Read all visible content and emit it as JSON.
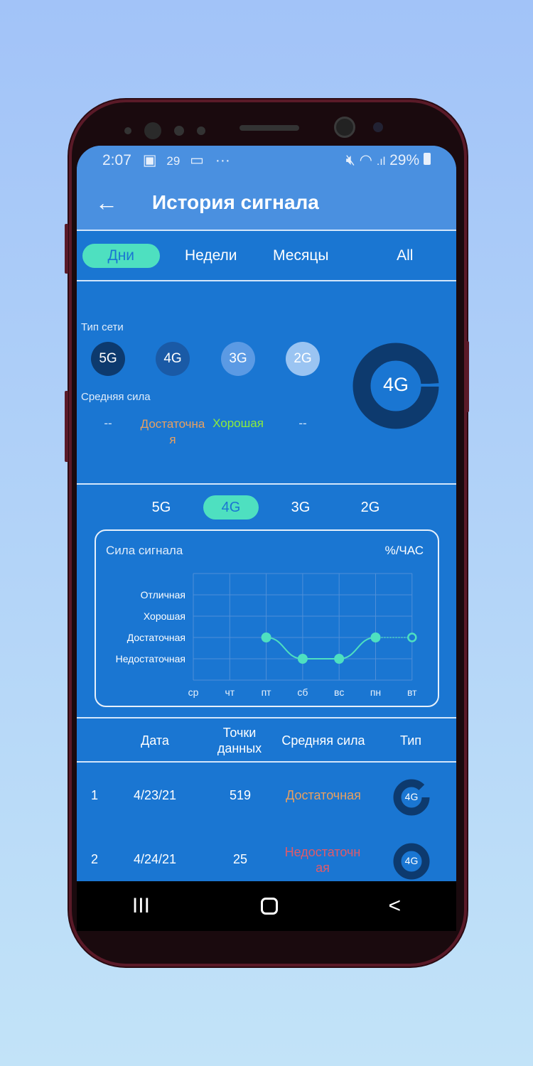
{
  "status_bar": {
    "time": "2:07",
    "date_icon": "29",
    "battery": "29%",
    "icons": [
      "image-icon",
      "calendar-icon",
      "cast-icon",
      "more-icon",
      "mute-icon",
      "wifi-icon",
      "signal-icon",
      "battery-icon"
    ]
  },
  "header": {
    "title": "История сигнала",
    "back_icon": "arrow-left-icon"
  },
  "period_tabs": [
    {
      "label": "Дни",
      "active": true
    },
    {
      "label": "Недели"
    },
    {
      "label": "Месяцы"
    },
    {
      "label": "All"
    }
  ],
  "summary": {
    "network_type_label": "Тип сети",
    "types": [
      {
        "label": "5G",
        "color": "#0d3a6e"
      },
      {
        "label": "4G",
        "color": "#1a5aa6"
      },
      {
        "label": "3G",
        "color": "#5b9ae4"
      },
      {
        "label": "2G",
        "color": "#9ac4f2"
      }
    ],
    "avg_strength_label": "Средняя сила",
    "strengths": [
      {
        "value": "--",
        "color": "#d3e6fb"
      },
      {
        "value": "Достаточная",
        "color": "#e8a060"
      },
      {
        "value": "Хорошая",
        "color": "#8cec3c"
      },
      {
        "value": "--",
        "color": "#d3e6fb"
      }
    ],
    "donut_label": "4G"
  },
  "network_tabs": [
    {
      "label": "5G"
    },
    {
      "label": "4G",
      "active": true
    },
    {
      "label": "3G"
    },
    {
      "label": "2G"
    }
  ],
  "chart_data": {
    "type": "line",
    "title": "Сила сигнала",
    "unit": "%/ЧАС",
    "categories": [
      "ср",
      "чт",
      "пт",
      "сб",
      "вс",
      "пн",
      "вт"
    ],
    "y_levels": [
      "Недостаточная",
      "Достаточная",
      "Хорошая",
      "Отличная"
    ],
    "values": [
      null,
      null,
      "Достаточная",
      "Недостаточная",
      "Недостаточная",
      "Достаточная",
      "Достаточная"
    ],
    "grid": true,
    "line_color": "#4ee0c0"
  },
  "table": {
    "headers": [
      "Дата",
      "Точки данных",
      "Средняя сила",
      "Тип"
    ],
    "rows": [
      {
        "index": "1",
        "date": "4/23/21",
        "points": "519",
        "strength": "Достаточная",
        "strength_color": "#e8a060",
        "type": "4G"
      },
      {
        "index": "2",
        "date": "4/24/21",
        "points": "25",
        "strength": "Недостаточная",
        "strength_color": "#e05a6a",
        "type": "4G"
      }
    ]
  },
  "nav_bar": {
    "icons": [
      "recent-apps-icon",
      "home-icon",
      "back-icon"
    ],
    "recent": "III",
    "home": "O",
    "back": "<"
  }
}
